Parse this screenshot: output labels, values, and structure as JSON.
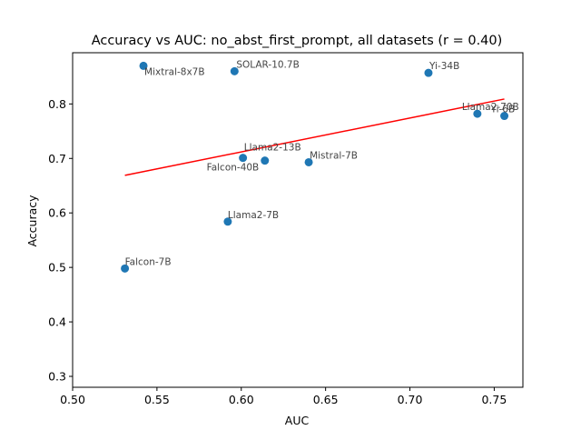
{
  "chart_data": {
    "type": "scatter",
    "title": "Accuracy vs AUC: no_abst_first_prompt, all datasets (r = 0.40)",
    "xlabel": "AUC",
    "ylabel": "Accuracy",
    "xlim": [
      0.5,
      0.767
    ],
    "ylim": [
      0.28,
      0.894
    ],
    "xticks": [
      "0.50",
      "0.55",
      "0.60",
      "0.65",
      "0.70",
      "0.75"
    ],
    "yticks": [
      "0.3",
      "0.4",
      "0.5",
      "0.6",
      "0.7",
      "0.8"
    ],
    "grid": false,
    "colors": {
      "points": "#1f77b4",
      "trend": "#ff0000",
      "labels": "#444444"
    },
    "points": [
      {
        "label": "Mixtral-8x7B",
        "x": 0.542,
        "y": 0.87
      },
      {
        "label": "SOLAR-10.7B",
        "x": 0.596,
        "y": 0.86
      },
      {
        "label": "Yi-34B",
        "x": 0.711,
        "y": 0.857
      },
      {
        "label": "Llama2-70B",
        "x": 0.74,
        "y": 0.782
      },
      {
        "label": "Yi-6B",
        "x": 0.756,
        "y": 0.778
      },
      {
        "label": "Llama2-13B",
        "x": 0.614,
        "y": 0.696
      },
      {
        "label": "Falcon-40B",
        "x": 0.601,
        "y": 0.701
      },
      {
        "label": "Mistral-7B",
        "x": 0.64,
        "y": 0.693
      },
      {
        "label": "Llama2-7B",
        "x": 0.592,
        "y": 0.584
      },
      {
        "label": "Falcon-7B",
        "x": 0.531,
        "y": 0.498
      }
    ],
    "trendline": {
      "x": [
        0.531,
        0.756
      ],
      "y": [
        0.669,
        0.809
      ]
    }
  }
}
